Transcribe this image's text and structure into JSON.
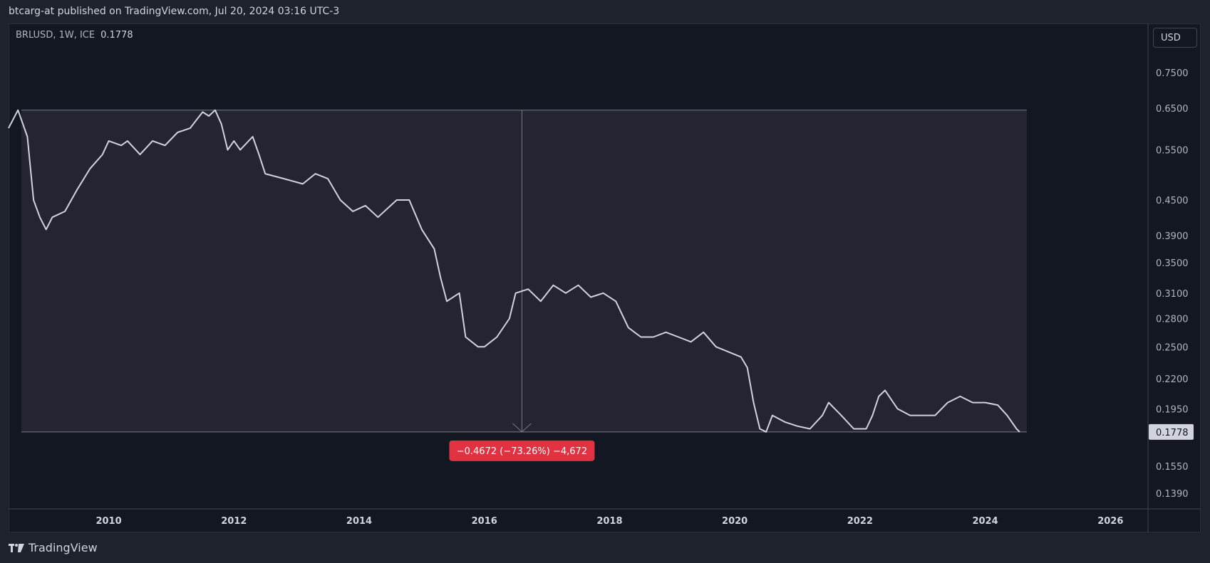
{
  "header": {
    "publisher": "btcarg-at published on TradingView.com, Jul 20, 2024 03:16 UTC-3"
  },
  "symbol": {
    "name": "BRLUSD, 1W, ICE",
    "last_price": "0.1778"
  },
  "currency_button": "USD",
  "footer": {
    "brand": "TradingView",
    "logo_icon": "tradingview-logo-icon"
  },
  "measure": {
    "label": "−0.4672 (−73.26%) −4,672",
    "high": 0.645,
    "low": 0.1778,
    "x": 2016.6
  },
  "colors": {
    "line": "#d1d4dc",
    "background": "#131722",
    "measure_box": "#232632",
    "measure_label": "#e03241"
  },
  "chart_data": {
    "type": "line",
    "title": "BRLUSD, 1W, ICE",
    "scale": "log",
    "y_ticks": [
      0.75,
      0.65,
      0.55,
      0.45,
      0.39,
      0.35,
      0.31,
      0.28,
      0.25,
      0.22,
      0.195,
      0.155,
      0.139
    ],
    "y_tick_labels": [
      "0.7500",
      "0.6500",
      "0.5500",
      "0.4500",
      "0.3900",
      "0.3500",
      "0.3100",
      "0.2800",
      "0.2500",
      "0.2200",
      "0.1950",
      "0.1550",
      "0.1390"
    ],
    "x_ticks": [
      2010,
      2012,
      2014,
      2016,
      2018,
      2020,
      2022,
      2024,
      2026
    ],
    "x_tick_labels": [
      "2010",
      "2012",
      "2014",
      "2016",
      "2018",
      "2020",
      "2022",
      "2024",
      "2026"
    ],
    "last_value_label": "0.1778",
    "series": [
      {
        "values": [
          [
            2008.4,
            0.6
          ],
          [
            2008.55,
            0.645
          ],
          [
            2008.7,
            0.58
          ],
          [
            2008.8,
            0.45
          ],
          [
            2008.9,
            0.42
          ],
          [
            2009.0,
            0.4
          ],
          [
            2009.1,
            0.42
          ],
          [
            2009.3,
            0.43
          ],
          [
            2009.5,
            0.47
          ],
          [
            2009.7,
            0.51
          ],
          [
            2009.9,
            0.54
          ],
          [
            2010.0,
            0.57
          ],
          [
            2010.2,
            0.56
          ],
          [
            2010.3,
            0.57
          ],
          [
            2010.5,
            0.54
          ],
          [
            2010.7,
            0.57
          ],
          [
            2010.9,
            0.56
          ],
          [
            2011.1,
            0.59
          ],
          [
            2011.3,
            0.6
          ],
          [
            2011.4,
            0.62
          ],
          [
            2011.5,
            0.64
          ],
          [
            2011.6,
            0.63
          ],
          [
            2011.7,
            0.645
          ],
          [
            2011.8,
            0.61
          ],
          [
            2011.9,
            0.55
          ],
          [
            2012.0,
            0.57
          ],
          [
            2012.1,
            0.55
          ],
          [
            2012.3,
            0.58
          ],
          [
            2012.4,
            0.54
          ],
          [
            2012.5,
            0.5
          ],
          [
            2012.8,
            0.49
          ],
          [
            2013.1,
            0.48
          ],
          [
            2013.3,
            0.5
          ],
          [
            2013.5,
            0.49
          ],
          [
            2013.7,
            0.45
          ],
          [
            2013.9,
            0.43
          ],
          [
            2014.1,
            0.44
          ],
          [
            2014.3,
            0.42
          ],
          [
            2014.6,
            0.45
          ],
          [
            2014.8,
            0.45
          ],
          [
            2015.0,
            0.4
          ],
          [
            2015.2,
            0.37
          ],
          [
            2015.3,
            0.33
          ],
          [
            2015.4,
            0.3
          ],
          [
            2015.6,
            0.31
          ],
          [
            2015.7,
            0.26
          ],
          [
            2015.9,
            0.25
          ],
          [
            2016.0,
            0.25
          ],
          [
            2016.2,
            0.26
          ],
          [
            2016.4,
            0.28
          ],
          [
            2016.5,
            0.31
          ],
          [
            2016.7,
            0.315
          ],
          [
            2016.9,
            0.3
          ],
          [
            2017.1,
            0.32
          ],
          [
            2017.3,
            0.31
          ],
          [
            2017.5,
            0.32
          ],
          [
            2017.7,
            0.305
          ],
          [
            2017.9,
            0.31
          ],
          [
            2018.1,
            0.3
          ],
          [
            2018.3,
            0.27
          ],
          [
            2018.5,
            0.26
          ],
          [
            2018.7,
            0.26
          ],
          [
            2018.9,
            0.265
          ],
          [
            2019.1,
            0.26
          ],
          [
            2019.3,
            0.255
          ],
          [
            2019.5,
            0.265
          ],
          [
            2019.7,
            0.25
          ],
          [
            2019.9,
            0.245
          ],
          [
            2020.1,
            0.24
          ],
          [
            2020.2,
            0.23
          ],
          [
            2020.3,
            0.2
          ],
          [
            2020.4,
            0.18
          ],
          [
            2020.5,
            0.1778
          ],
          [
            2020.6,
            0.19
          ],
          [
            2020.8,
            0.185
          ],
          [
            2021.0,
            0.182
          ],
          [
            2021.2,
            0.18
          ],
          [
            2021.4,
            0.19
          ],
          [
            2021.5,
            0.2
          ],
          [
            2021.7,
            0.19
          ],
          [
            2021.9,
            0.18
          ],
          [
            2022.1,
            0.18
          ],
          [
            2022.2,
            0.19
          ],
          [
            2022.3,
            0.205
          ],
          [
            2022.4,
            0.21
          ],
          [
            2022.6,
            0.195
          ],
          [
            2022.8,
            0.19
          ],
          [
            2023.0,
            0.19
          ],
          [
            2023.2,
            0.19
          ],
          [
            2023.4,
            0.2
          ],
          [
            2023.6,
            0.205
          ],
          [
            2023.8,
            0.2
          ],
          [
            2024.0,
            0.2
          ],
          [
            2024.2,
            0.198
          ],
          [
            2024.35,
            0.19
          ],
          [
            2024.5,
            0.18
          ],
          [
            2024.55,
            0.1778
          ]
        ]
      }
    ]
  }
}
